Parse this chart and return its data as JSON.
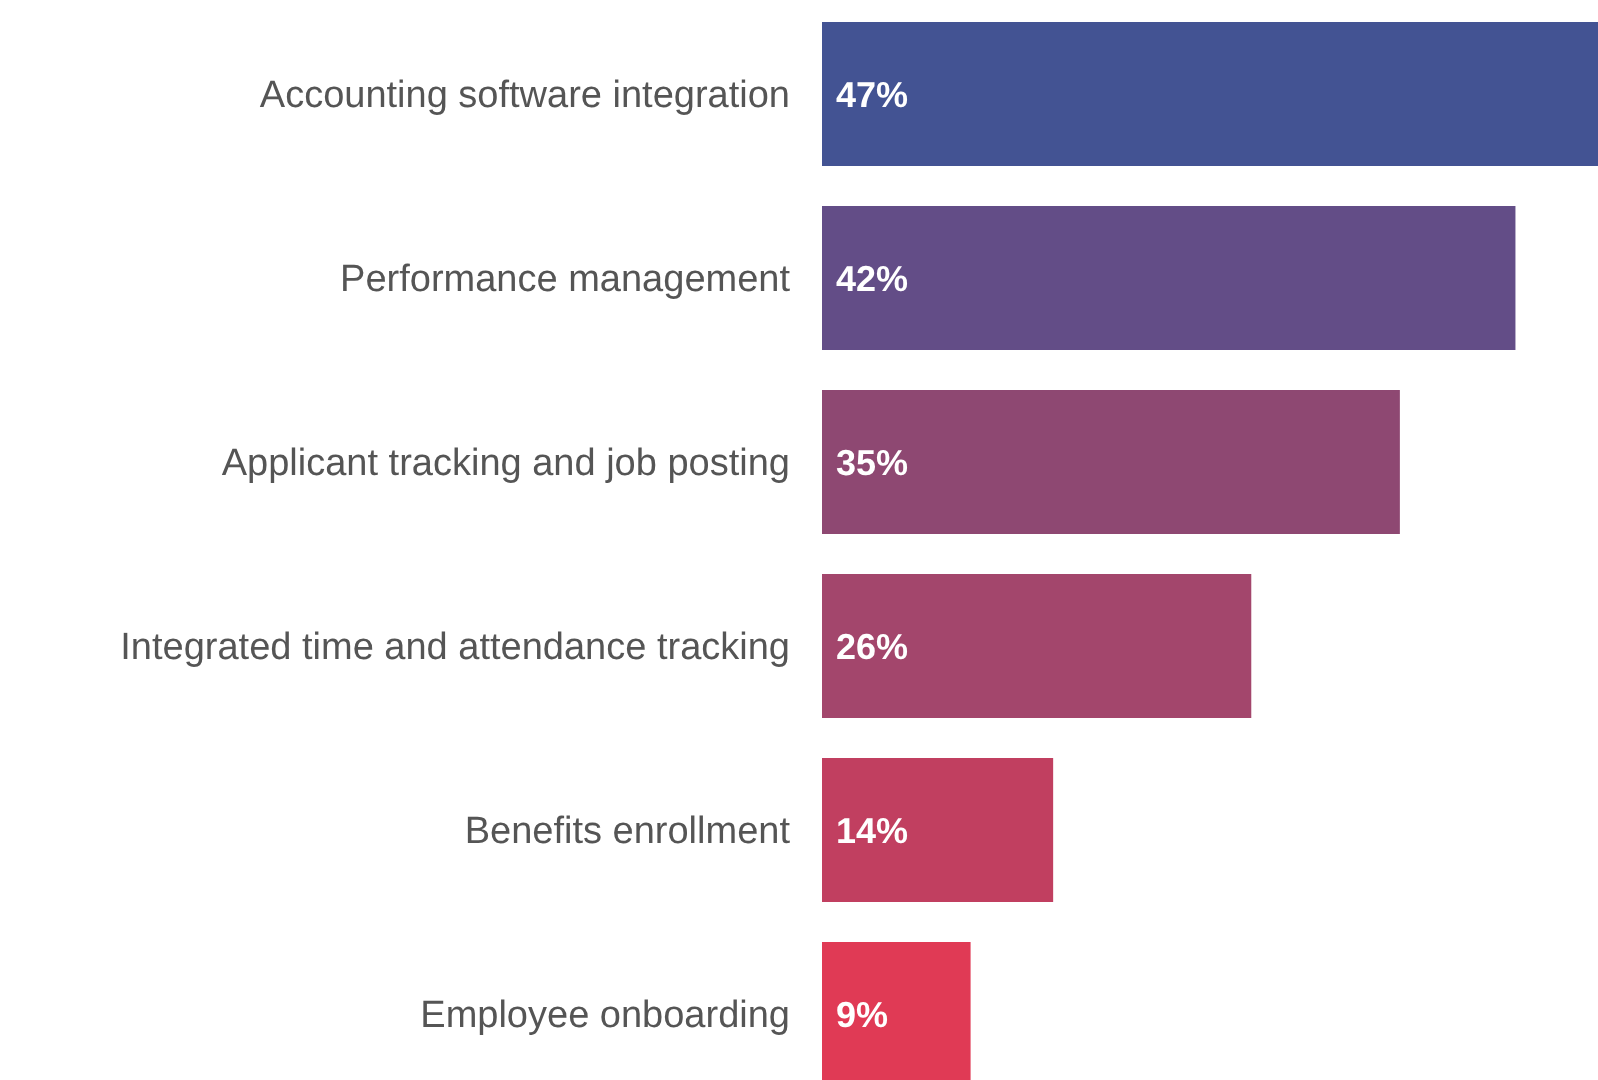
{
  "chart_data": {
    "type": "bar",
    "orientation": "horizontal",
    "categories": [
      "Accounting software integration",
      "Performance management",
      "Applicant tracking and job posting",
      "Integrated time and attendance tracking",
      "Benefits enrollment",
      "Employee onboarding"
    ],
    "values": [
      47,
      42,
      35,
      26,
      14,
      9
    ],
    "value_labels": [
      "47%",
      "42%",
      "35%",
      "26%",
      "14%",
      "9%"
    ],
    "colors": [
      "#435393",
      "#634d87",
      "#8e4872",
      "#a3466c",
      "#c13f60",
      "#e03a55"
    ],
    "xlim": [
      0,
      47
    ],
    "tick_labels": "y"
  }
}
